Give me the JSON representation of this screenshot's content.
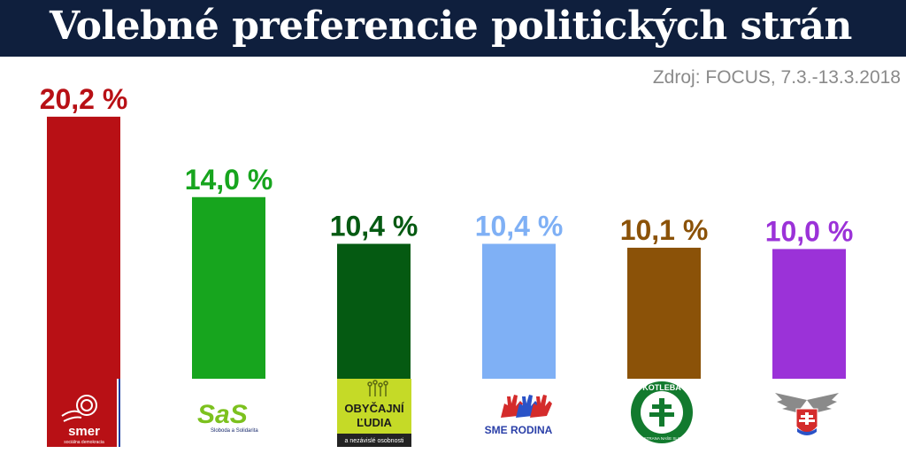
{
  "header": {
    "title": "Volebné preferencie politických strán"
  },
  "source": "Zdroj: FOCUS, 7.3.-13.3.2018",
  "chart_data": {
    "type": "bar",
    "title": "Volebné preferencie politických strán",
    "categories": [
      "SMER",
      "SaS",
      "OBYČAJNÍ ĽUDIA",
      "SME RODINA",
      "KOTLEBA",
      "SNS"
    ],
    "values": [
      20.2,
      14.0,
      10.4,
      10.4,
      10.1,
      10.0
    ],
    "value_labels": [
      "20,2 %",
      "14,0 %",
      "10,4 %",
      "10,4 %",
      "10,1 %",
      "10,0 %"
    ],
    "colors": [
      "#b81015",
      "#17a51e",
      "#055a12",
      "#7fb0f5",
      "#8b5208",
      "#9b32d8"
    ],
    "ylim": [
      0,
      21
    ],
    "grid": false,
    "legend": "none"
  },
  "logos": {
    "smer": {
      "name": "smer",
      "tagline": "sociálna demokracia",
      "icon": "rose-icon"
    },
    "sas": {
      "name": "SaS",
      "tagline": "Sloboda a Solidarita"
    },
    "olano": {
      "line1": "OBYČAJNÍ",
      "line2": "ĽUDIA",
      "tagline": "a nezávislé osobnosti"
    },
    "sme_rodina": {
      "name": "SME RODINA",
      "icon": "hands-icon"
    },
    "kotleba": {
      "name": "KOTLEBA",
      "ring_text": "ĽUDOVÁ STRANA NAŠE SLOVENSKO",
      "icon": "double-cross-icon"
    },
    "sns": {
      "icon": "eagle-emblem-icon"
    }
  }
}
